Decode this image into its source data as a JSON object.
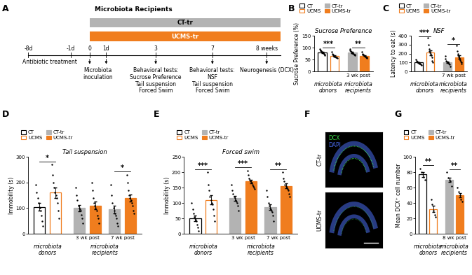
{
  "diagram": {
    "panel": "A",
    "title": "Microbiota Recipients",
    "groups": [
      {
        "name": "CT-tr",
        "color": "#b3b3b3"
      },
      {
        "name": "UCMS-tr",
        "color": "#f07d1e"
      }
    ],
    "ticks": [
      "-8d",
      "-1d",
      "0",
      "1d",
      "3",
      "7",
      "8 weeks"
    ],
    "events": [
      {
        "text": [
          "Antibiotic treatment"
        ],
        "from": "-8d",
        "to": "-1d"
      },
      {
        "text": [
          "Microbiota",
          "inoculation"
        ],
        "at": [
          "0",
          "1d"
        ]
      },
      {
        "text": [
          "Behavioral tests:",
          "Sucrose Preference",
          "Tail suspension",
          "Forced Swim"
        ],
        "at": [
          "3"
        ]
      },
      {
        "text": [
          "Behavioral tests:",
          "NSF",
          "Tail suspension",
          "Forced Swim"
        ],
        "at": [
          "7"
        ]
      },
      {
        "text": [
          "Neurogenesis (DCX)"
        ],
        "at": [
          "8 weeks"
        ]
      }
    ]
  },
  "chart_data": [
    {
      "panel": "B",
      "type": "bar",
      "title": "Sucrose Preference",
      "ylabel": "Sucrose Preference (%)",
      "ylim": [
        0,
        150
      ],
      "yticks": [
        0,
        50,
        100,
        150
      ],
      "legend": "upper left",
      "series": [
        {
          "name": "CT",
          "color": "#ffffff"
        },
        {
          "name": "UCMS",
          "color": "#ffffff"
        },
        {
          "name": "CT-tr",
          "color": "#b3b3b3"
        },
        {
          "name": "UCMS-tr",
          "color": "#f07d1e"
        }
      ],
      "groups": [
        {
          "section": "microbiota donors",
          "significance": "***",
          "bars": [
            {
              "series": "CT",
              "value": 81,
              "error": 3,
              "points": [
                95,
                90,
                88,
                85,
                83,
                80,
                78,
                75,
                72,
                68
              ]
            },
            {
              "series": "UCMS",
              "value": 66,
              "error": 2.7,
              "points": [
                82,
                75,
                70,
                67,
                65,
                63,
                62,
                60,
                58,
                55
              ]
            }
          ]
        },
        {
          "section": "microbiota recipients",
          "label": "3 wk post",
          "significance": "**",
          "bars": [
            {
              "series": "CT-tr",
              "value": 79,
              "error": 2.6,
              "points": [
                95,
                90,
                85,
                82,
                80,
                78,
                76,
                75,
                72,
                70,
                68
              ]
            },
            {
              "series": "UCMS-tr",
              "value": 66.5,
              "error": 2.5,
              "points": [
                82,
                75,
                72,
                70,
                68,
                66,
                64,
                62,
                60,
                58,
                55
              ]
            }
          ]
        }
      ]
    },
    {
      "panel": "C",
      "type": "bar",
      "title": "NSF",
      "ylabel": "Latency to eat (s)",
      "ylim": [
        0,
        400
      ],
      "yticks": [
        0,
        100,
        200,
        300,
        400
      ],
      "legend": "upper left",
      "series": [
        {
          "name": "CT",
          "color": "#ffffff"
        },
        {
          "name": "UCMS",
          "color": "#ffffff"
        },
        {
          "name": "CT-tr",
          "color": "#b3b3b3"
        },
        {
          "name": "UCMS-tr",
          "color": "#f07d1e"
        }
      ],
      "groups": [
        {
          "section": "microbiota donors",
          "significance": "***",
          "bars": [
            {
              "series": "CT",
              "value": 100,
              "error": 6,
              "points": [
                135,
                120,
                110,
                105,
                100,
                95,
                90,
                85,
                80,
                75
              ]
            },
            {
              "series": "UCMS",
              "value": 210,
              "error": 26,
              "points": [
                380,
                300,
                250,
                230,
                210,
                200,
                180,
                160,
                120,
                100
              ]
            }
          ]
        },
        {
          "section": "microbiota recipients",
          "label": "7 wk post",
          "significance": "*",
          "bars": [
            {
              "series": "CT-tr",
              "value": 105,
              "error": 9,
              "points": [
                170,
                140,
                120,
                110,
                105,
                100,
                95,
                90,
                80,
                60
              ]
            },
            {
              "series": "UCMS-tr",
              "value": 160,
              "error": 18,
              "points": [
                290,
                230,
                200,
                180,
                165,
                150,
                140,
                130,
                110,
                100,
                90
              ]
            }
          ]
        }
      ]
    },
    {
      "panel": "D",
      "type": "bar",
      "title": "Tail suspension",
      "ylabel": "Immobility (s)",
      "ylim": [
        0,
        300
      ],
      "yticks": [
        0,
        100,
        200,
        300
      ],
      "legend": "upper left",
      "series": [
        {
          "name": "CT",
          "color": "#ffffff"
        },
        {
          "name": "UCMS",
          "color": "#ffffff"
        },
        {
          "name": "CT-tr",
          "color": "#b3b3b3"
        },
        {
          "name": "UCMS-tr",
          "color": "#f07d1e"
        }
      ],
      "groups": [
        {
          "section": "microbiota donors",
          "significance": "*",
          "bars": [
            {
              "series": "CT",
              "value": 105,
              "error": 15,
              "points": [
                190,
                160,
                140,
                120,
                105,
                100,
                90,
                70,
                50,
                30
              ]
            },
            {
              "series": "UCMS",
              "value": 160,
              "error": 20,
              "points": [
                270,
                230,
                200,
                180,
                160,
                150,
                140,
                120,
                90,
                60
              ]
            }
          ]
        },
        {
          "section": "microbiota recipients",
          "label": "3 wk post",
          "bars": [
            {
              "series": "CT-tr",
              "value": 100,
              "error": 13,
              "points": [
                180,
                150,
                130,
                110,
                100,
                95,
                90,
                75,
                60,
                40
              ]
            },
            {
              "series": "UCMS-tr",
              "value": 110,
              "error": 15,
              "points": [
                200,
                170,
                140,
                120,
                110,
                100,
                90,
                70,
                60,
                40
              ]
            }
          ]
        },
        {
          "section": "microbiota recipients",
          "label": "7 wk post",
          "significance": "*",
          "bars": [
            {
              "series": "CT-tr",
              "value": 95,
              "error": 15,
              "points": [
                190,
                150,
                120,
                100,
                90,
                80,
                70,
                60,
                40,
                30
              ]
            },
            {
              "series": "UCMS-tr",
              "value": 140,
              "error": 14,
              "points": [
                230,
                200,
                170,
                150,
                140,
                130,
                120,
                110,
                90,
                80
              ]
            }
          ]
        }
      ]
    },
    {
      "panel": "E",
      "type": "bar",
      "title": "Forced swim",
      "ylabel": "Immobility (s)",
      "ylim": [
        0,
        250
      ],
      "yticks": [
        0,
        50,
        100,
        150,
        200,
        250
      ],
      "legend": "upper left",
      "series": [
        {
          "name": "CT",
          "color": "#ffffff"
        },
        {
          "name": "UCMS",
          "color": "#ffffff"
        },
        {
          "name": "CT-tr",
          "color": "#b3b3b3"
        },
        {
          "name": "UCMS-tr",
          "color": "#f07d1e"
        }
      ],
      "groups": [
        {
          "section": "microbiota donors",
          "significance": "***",
          "bars": [
            {
              "series": "CT",
              "value": 50,
              "error": 9,
              "points": [
                100,
                80,
                65,
                55,
                50,
                45,
                40,
                30,
                20,
                10
              ]
            },
            {
              "series": "UCMS",
              "value": 110,
              "error": 15,
              "points": [
                200,
                160,
                140,
                120,
                110,
                100,
                95,
                80,
                60,
                40
              ]
            }
          ]
        },
        {
          "section": "microbiota recipients",
          "label": "3 wk post",
          "significance": "***",
          "bars": [
            {
              "series": "CT-tr",
              "value": 115,
              "error": 8,
              "points": [
                160,
                140,
                130,
                120,
                115,
                110,
                105,
                100,
                90,
                75
              ]
            },
            {
              "series": "UCMS-tr",
              "value": 170,
              "error": 6,
              "points": [
                205,
                190,
                180,
                175,
                170,
                165,
                160,
                155,
                150,
                145
              ]
            }
          ]
        },
        {
          "section": "microbiota recipients",
          "label": "7 wk post",
          "significance": "**",
          "bars": [
            {
              "series": "CT-tr",
              "value": 86,
              "error": 9,
              "points": [
                140,
                120,
                100,
                90,
                85,
                80,
                75,
                70,
                60,
                40
              ]
            },
            {
              "series": "UCMS-tr",
              "value": 155,
              "error": 8,
              "points": [
                200,
                180,
                170,
                160,
                155,
                150,
                145,
                140,
                130,
                120
              ]
            }
          ]
        }
      ]
    },
    {
      "panel": "G",
      "type": "bar",
      "ylabel": "Mean DCX⁺ cell number",
      "ylim": [
        0,
        100
      ],
      "yticks": [
        0,
        20,
        40,
        60,
        80,
        100
      ],
      "legend": "upper left",
      "series": [
        {
          "name": "CT",
          "color": "#ffffff"
        },
        {
          "name": "UCMS",
          "color": "#ffffff"
        },
        {
          "name": "CT-tr",
          "color": "#b3b3b3"
        },
        {
          "name": "UCMS-tr",
          "color": "#f07d1e"
        }
      ],
      "groups": [
        {
          "section": "microbiota donors",
          "significance": "**",
          "bars": [
            {
              "series": "CT",
              "value": 77,
              "error": 3,
              "points": [
                85,
                80,
                77,
                74,
                70
              ]
            },
            {
              "series": "UCMS",
              "value": 32,
              "error": 4,
              "points": [
                45,
                38,
                30,
                25,
                22
              ]
            }
          ]
        },
        {
          "section": "microbiota recipients",
          "label": "8 wk post",
          "significance": "**",
          "bars": [
            {
              "series": "CT-tr",
              "value": 70,
              "error": 3,
              "points": [
                80,
                73,
                70,
                68,
                62
              ]
            },
            {
              "series": "UCMS-tr",
              "value": 50,
              "error": 3,
              "points": [
                60,
                55,
                50,
                45,
                42
              ]
            }
          ]
        }
      ]
    }
  ],
  "image": {
    "panel": "F",
    "rows": [
      "CT-tr",
      "UCMS-tr"
    ],
    "channels": [
      {
        "name": "DCX",
        "color": "#3ddc4a"
      },
      {
        "name": "DAPI",
        "color": "#4a6cf0"
      }
    ]
  }
}
